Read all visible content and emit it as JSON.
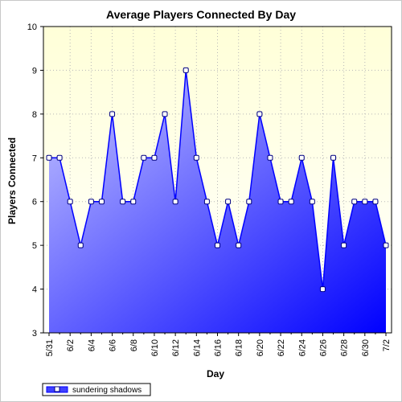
{
  "chart_data": {
    "type": "area",
    "title": "Average Players Connected By Day",
    "xlabel": "Day",
    "ylabel": "Players Connected",
    "ylim": [
      3,
      10
    ],
    "yticks": [
      "3",
      "4",
      "5",
      "6",
      "7",
      "8",
      "9",
      "10"
    ],
    "xtick_labels": [
      "5/31",
      "6/2",
      "6/4",
      "6/6",
      "6/8",
      "6/10",
      "6/12",
      "6/14",
      "6/16",
      "6/18",
      "6/20",
      "6/22",
      "6/24",
      "6/26",
      "6/28",
      "6/30",
      "7/2"
    ],
    "x": [
      "5/31",
      "6/1",
      "6/2",
      "6/3",
      "6/4",
      "6/5",
      "6/6",
      "6/7",
      "6/8",
      "6/9",
      "6/10",
      "6/11",
      "6/12",
      "6/13",
      "6/14",
      "6/15",
      "6/16",
      "6/17",
      "6/18",
      "6/19",
      "6/20",
      "6/21",
      "6/22",
      "6/23",
      "6/24",
      "6/25",
      "6/26",
      "6/27",
      "6/28",
      "6/29",
      "6/30",
      "7/1",
      "7/2"
    ],
    "series": [
      {
        "name": "sundering shadows",
        "values": [
          7,
          7,
          6,
          5,
          6,
          6,
          8,
          6,
          6,
          7,
          7,
          8,
          6,
          9,
          7,
          6,
          5,
          6,
          5,
          6,
          8,
          7,
          6,
          6,
          7,
          6,
          4,
          7,
          5,
          6,
          6,
          6,
          5
        ],
        "color": "#0000ff"
      }
    ],
    "grid": true,
    "legend": "bottom-left",
    "plot_background": "#ffffe0",
    "area_gradient": [
      "#c8c8ff",
      "#0000ff"
    ]
  }
}
